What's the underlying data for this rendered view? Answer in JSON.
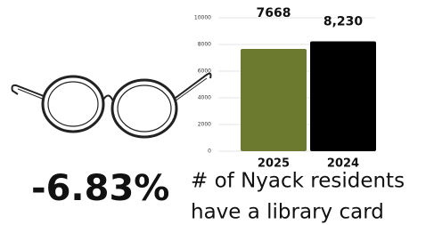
{
  "chart_data": {
    "type": "bar",
    "categories": [
      "2025",
      "2024"
    ],
    "values": [
      7668,
      8230
    ],
    "value_labels": [
      "7668",
      "8,230"
    ],
    "colors": [
      "#6b7a2f",
      "#000000"
    ],
    "ylim": [
      0,
      10000
    ],
    "yticks": [
      0,
      2000,
      4000,
      6000,
      8000,
      10000
    ],
    "grid": true
  },
  "headline": {
    "stat": "-6.83%",
    "text": [
      "# of Nyack residents",
      "have a library card"
    ]
  }
}
